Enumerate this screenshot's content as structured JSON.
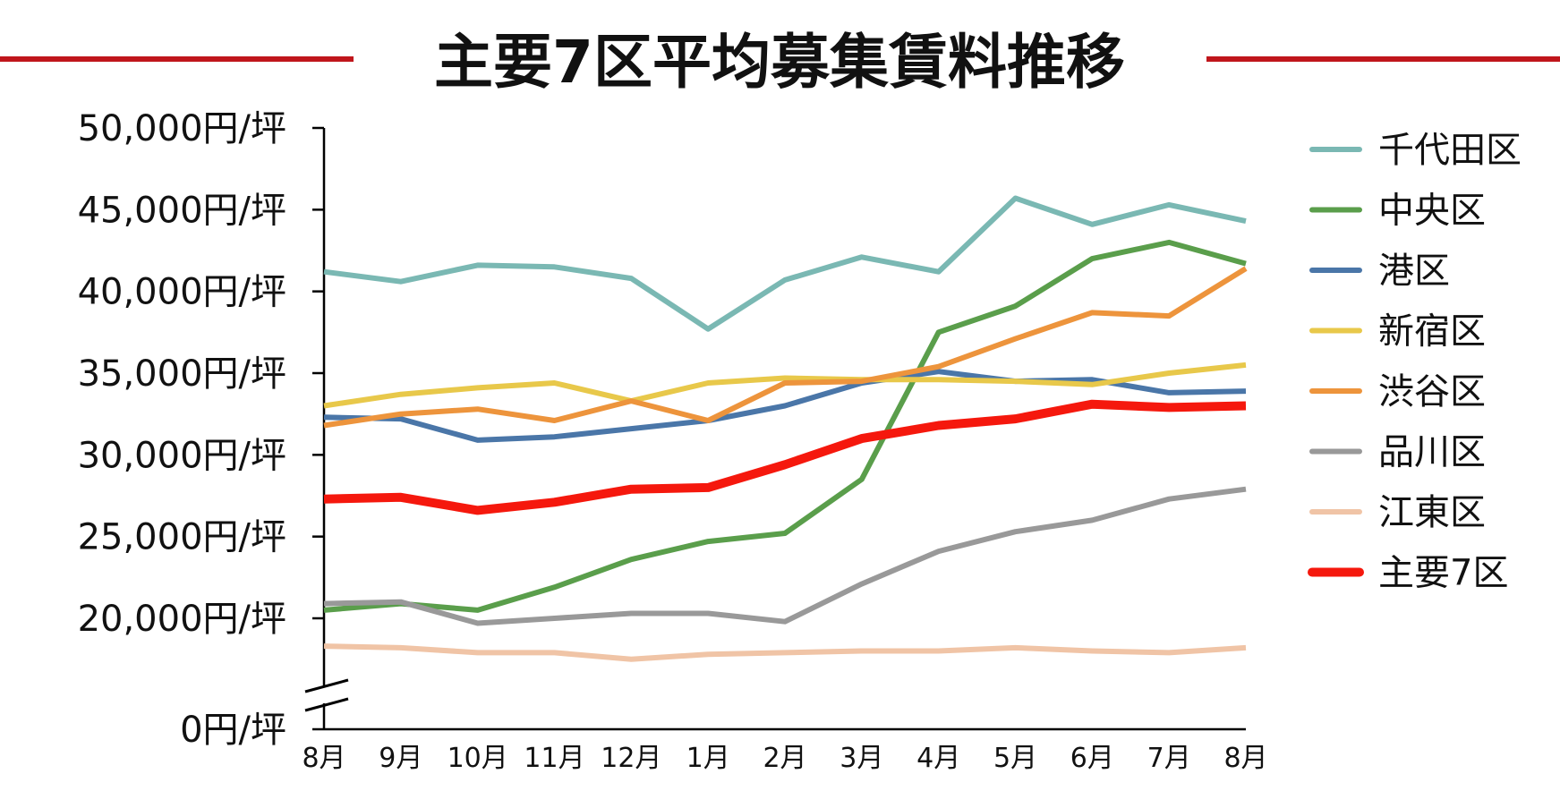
{
  "chart_data": {
    "type": "line",
    "title": "主要7区平均募集賃料推移",
    "xlabel": "",
    "ylabel": "",
    "categories": [
      "8月",
      "9月",
      "10月",
      "11月",
      "12月",
      "1月",
      "2月",
      "3月",
      "4月",
      "5月",
      "6月",
      "7月",
      "8月"
    ],
    "y_ticks": [
      "50,000円/坪",
      "45,000円/坪",
      "40,000円/坪",
      "35,000円/坪",
      "30,000円/坪",
      "25,000円/坪",
      "20,000円/坪",
      "0円/坪"
    ],
    "y_tick_values": [
      50000,
      45000,
      40000,
      35000,
      30000,
      25000,
      20000,
      0
    ],
    "ylim": [
      0,
      50000
    ],
    "axis_break": "between 0 and 20,000",
    "grid": false,
    "legend_position": "right",
    "title_accent_color": "#c0161c",
    "series": [
      {
        "name": "千代田区",
        "color": "#7ab8b3",
        "values": [
          41200,
          40600,
          41600,
          41500,
          40800,
          37700,
          40700,
          42100,
          41200,
          45700,
          44100,
          45300,
          44300
        ]
      },
      {
        "name": "中央区",
        "color": "#5a9e4b",
        "values": [
          20500,
          20900,
          20500,
          21900,
          23600,
          24700,
          25200,
          28500,
          37500,
          39100,
          42000,
          43000,
          41700
        ]
      },
      {
        "name": "港区",
        "color": "#4a76a8",
        "values": [
          32300,
          32200,
          30900,
          31100,
          31600,
          32100,
          33000,
          34400,
          35100,
          34500,
          34600,
          33800,
          33900
        ]
      },
      {
        "name": "新宿区",
        "color": "#e8c84a",
        "values": [
          33000,
          33700,
          34100,
          34400,
          33300,
          34400,
          34700,
          34600,
          34600,
          34500,
          34300,
          35000,
          35500
        ]
      },
      {
        "name": "渋谷区",
        "color": "#ed943c",
        "values": [
          31800,
          32500,
          32800,
          32100,
          33300,
          32100,
          34400,
          34500,
          35400,
          37100,
          38700,
          38500,
          41400
        ]
      },
      {
        "name": "品川区",
        "color": "#999999",
        "values": [
          20900,
          21000,
          19700,
          20000,
          20300,
          20300,
          19800,
          22100,
          24100,
          25300,
          26000,
          27300,
          27900
        ]
      },
      {
        "name": "江東区",
        "color": "#f0c4a6",
        "values": [
          18300,
          18200,
          17900,
          17900,
          17500,
          17800,
          17900,
          18000,
          18000,
          18200,
          18000,
          17900,
          18200
        ]
      },
      {
        "name": "主要7区",
        "color": "#f5180d",
        "values": [
          27300,
          27400,
          26600,
          27100,
          27900,
          28000,
          29400,
          31000,
          31800,
          32200,
          33100,
          32900,
          33000
        ]
      }
    ]
  }
}
